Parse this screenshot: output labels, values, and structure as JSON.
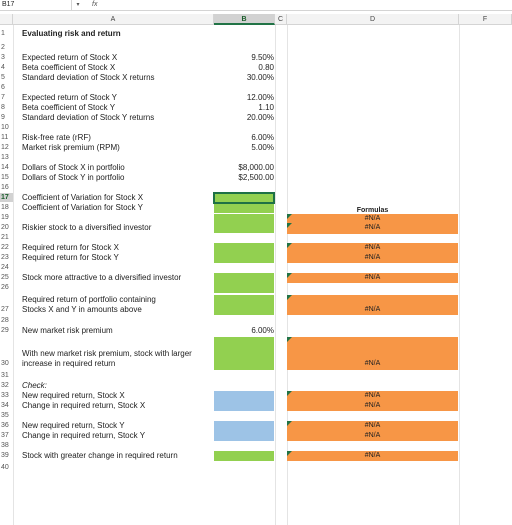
{
  "formula_bar": {
    "name_box": "B17",
    "fx_label": "fx",
    "formula": ""
  },
  "columns": [
    "A",
    "B",
    "C",
    "D",
    "F"
  ],
  "selected_column": "B",
  "selected_row": "17",
  "rows": {
    "r1": "1",
    "r2": "2",
    "r3": "3",
    "r4": "4",
    "r5": "5",
    "r6": "6",
    "r7": "7",
    "r8": "8",
    "r9": "9",
    "r10": "10",
    "r11": "11",
    "r12": "12",
    "r13": "13",
    "r14": "14",
    "r15": "15",
    "r16": "16",
    "r17": "17",
    "r18": "18",
    "r19": "19",
    "r20": "20",
    "r21": "21",
    "r22": "22",
    "r23": "23",
    "r24": "24",
    "r25": "25",
    "r26": "26",
    "r27": "27",
    "r28": "28",
    "r29": "29",
    "r30": "30",
    "r31": "31",
    "r32": "32",
    "r33": "33",
    "r34": "34",
    "r35": "35",
    "r36": "36",
    "r37": "37",
    "r38": "38",
    "r39": "39",
    "r40": "40"
  },
  "labels": {
    "title": "Evaluating risk and return",
    "l3": "Expected return of Stock X",
    "l4": "Beta coefficient of Stock X",
    "l5": "Standard deviation of Stock X returns",
    "l7": "Expected return of Stock Y",
    "l8": "Beta coefficient of Stock Y",
    "l9": "Standard deviation of Stock Y returns",
    "l11": "Risk-free rate (rRF)",
    "l12": "Market risk premium (RPM)",
    "l14": "Dollars of Stock X in portfolio",
    "l15": "Dollars of Stock Y in portfolio",
    "l17": "Coefficient of Variation for Stock X",
    "l18": "Coefficient of Variation for Stock Y",
    "l20": "Riskier stock to a diversified investor",
    "l22": "Required return for Stock X",
    "l23": "Required return for Stock Y",
    "l25": "Stock more attractive to a diversified investor",
    "l27a": "Required return of portfolio containing",
    "l27b": "Stocks X and Y in amounts above",
    "l29": "New market risk premium",
    "l30a": "With new market risk premium, stock with larger",
    "l30b": "increase in required return",
    "l32": "Check:",
    "l33": "New required return, Stock X",
    "l34": "Change in required return, Stock X",
    "l36": "New required return, Stock Y",
    "l37": "Change in required return, Stock Y",
    "l39": "Stock with greater change in required return"
  },
  "values": {
    "v3": "9.50%",
    "v4": "0.80",
    "v5": "30.00%",
    "v7": "12.00%",
    "v8": "1.10",
    "v9": "20.00%",
    "v11": "6.00%",
    "v12": "5.00%",
    "v14": "$8,000.00",
    "v15": "$2,500.00",
    "v29": "6.00%"
  },
  "formulas_header": "Formulas",
  "na": "#N/A",
  "colors": {
    "green": "#92d050",
    "orange": "#f79646",
    "blue": "#9dc3e6",
    "accent": "#217346"
  }
}
